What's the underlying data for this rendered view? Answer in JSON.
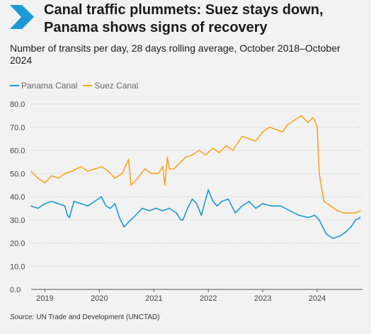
{
  "header": {
    "logo_icon": "chevron-right-icon",
    "title": "Canal traffic plummets: Suez stays down, Panama shows signs of recovery",
    "subtitle": "Number of transits per day, 28 days rolling average, October 2018–October 2024"
  },
  "source": {
    "label": "Source:",
    "text": "UN Trade and Development (UNCTAD)"
  },
  "colors": {
    "background": "#f2f2f2",
    "panama": "#1b9ad6",
    "suez": "#f5a623",
    "logo": "#1b9ad6",
    "grid": "#cfcfcf"
  },
  "chart_data": {
    "type": "line",
    "title": "Canal traffic plummets: Suez stays down, Panama shows signs of recovery",
    "subtitle": "Number of transits per day, 28 days rolling average, October 2018–October 2024",
    "xlabel": "",
    "ylabel": "",
    "ylim": [
      0,
      80
    ],
    "yticks": [
      0,
      10,
      20,
      30,
      40,
      50,
      60,
      70,
      80
    ],
    "ytick_labels": [
      "0.0",
      "10.0",
      "20.0",
      "30.0",
      "40.0",
      "50.0",
      "60.0",
      "70.0",
      "80.0"
    ],
    "xlim": [
      "2018-10-01",
      "2024-10-31"
    ],
    "xticks": [
      "2019-01-01",
      "2020-01-01",
      "2021-01-01",
      "2022-01-01",
      "2023-01-01",
      "2024-01-01"
    ],
    "xtick_labels": [
      "2019",
      "2020",
      "2021",
      "2022",
      "2023",
      "2024"
    ],
    "grid": "horizontal",
    "legend": "top-left",
    "series": [
      {
        "name": "Panama Canal",
        "x": [
          "2018-10-01",
          "2018-11-15",
          "2019-01-01",
          "2019-02-15",
          "2019-04-01",
          "2019-05-15",
          "2019-06-01",
          "2019-06-15",
          "2019-07-15",
          "2019-09-01",
          "2019-10-15",
          "2019-12-01",
          "2020-01-15",
          "2020-02-15",
          "2020-03-15",
          "2020-04-15",
          "2020-05-15",
          "2020-06-15",
          "2020-07-15",
          "2020-09-01",
          "2020-10-15",
          "2020-12-01",
          "2021-01-15",
          "2021-03-01",
          "2021-04-15",
          "2021-06-01",
          "2021-07-01",
          "2021-07-15",
          "2021-08-15",
          "2021-09-15",
          "2021-10-15",
          "2021-11-15",
          "2022-01-01",
          "2022-02-01",
          "2022-03-01",
          "2022-04-01",
          "2022-05-15",
          "2022-07-01",
          "2022-08-15",
          "2022-10-01",
          "2022-11-15",
          "2023-01-01",
          "2023-03-01",
          "2023-05-01",
          "2023-07-01",
          "2023-09-01",
          "2023-11-01",
          "2023-12-15",
          "2024-01-15",
          "2024-03-01",
          "2024-04-15",
          "2024-06-01",
          "2024-07-15",
          "2024-08-15",
          "2024-09-15",
          "2024-10-15"
        ],
        "values": [
          36,
          35,
          37,
          38,
          37,
          36,
          32,
          31,
          38,
          37,
          36,
          38,
          40,
          36,
          35,
          37,
          31,
          27,
          29,
          32,
          35,
          34,
          35,
          34,
          35,
          33,
          30,
          30,
          35,
          39,
          37,
          32,
          43,
          38,
          36,
          38,
          39,
          33,
          36,
          38,
          35,
          37,
          36,
          36,
          34,
          32,
          31,
          32,
          30,
          24,
          22,
          23,
          25,
          27,
          30,
          31
        ]
      },
      {
        "name": "Suez Canal",
        "x": [
          "2018-10-01",
          "2018-11-15",
          "2019-01-01",
          "2019-02-15",
          "2019-04-01",
          "2019-05-15",
          "2019-07-01",
          "2019-09-01",
          "2019-10-15",
          "2019-12-01",
          "2020-01-15",
          "2020-03-01",
          "2020-04-15",
          "2020-06-01",
          "2020-07-15",
          "2020-08-01",
          "2020-09-15",
          "2020-11-01",
          "2020-12-15",
          "2021-02-01",
          "2021-03-01",
          "2021-03-15",
          "2021-04-01",
          "2021-04-15",
          "2021-05-15",
          "2021-06-15",
          "2021-08-01",
          "2021-09-15",
          "2021-11-01",
          "2021-12-15",
          "2022-02-01",
          "2022-03-15",
          "2022-05-01",
          "2022-06-15",
          "2022-08-15",
          "2022-10-01",
          "2022-11-15",
          "2023-01-01",
          "2023-02-15",
          "2023-04-01",
          "2023-05-15",
          "2023-06-15",
          "2023-08-01",
          "2023-09-15",
          "2023-11-01",
          "2023-12-01",
          "2023-12-15",
          "2024-01-01",
          "2024-01-15",
          "2024-02-15",
          "2024-04-01",
          "2024-05-15",
          "2024-07-01",
          "2024-08-15",
          "2024-09-15",
          "2024-10-15"
        ],
        "values": [
          51,
          48,
          46,
          49,
          48,
          50,
          51,
          53,
          51,
          52,
          53,
          51,
          48,
          50,
          56,
          45,
          48,
          52,
          50,
          50,
          53,
          45,
          57,
          52,
          52,
          54,
          57,
          58,
          60,
          58,
          61,
          59,
          62,
          60,
          66,
          65,
          64,
          68,
          70,
          69,
          68,
          71,
          73,
          75,
          72,
          74,
          73,
          70,
          50,
          38,
          36,
          34,
          33,
          33,
          33,
          34
        ]
      }
    ]
  }
}
